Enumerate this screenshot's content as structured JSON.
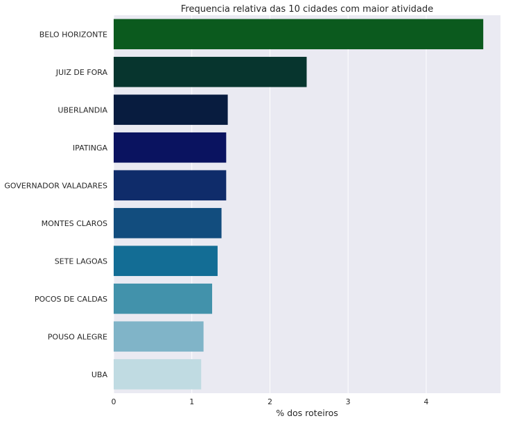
{
  "chart_data": {
    "type": "bar",
    "orientation": "horizontal",
    "title": "Frequencia relativa das 10 cidades com maior atividade",
    "xlabel": "% dos roteiros",
    "ylabel": "",
    "xlim": [
      0,
      4.95
    ],
    "xticks": [
      "0",
      "1",
      "2",
      "3",
      "4"
    ],
    "grid": true,
    "legend": "none",
    "plot_background": "#EAEAF2",
    "grid_color": "#ffffff",
    "categories": [
      "BELO HORIZONTE",
      "JUIZ DE FORA",
      "UBERLANDIA",
      "IPATINGA",
      "GOVERNADOR VALADARES",
      "MONTES CLAROS",
      "SETE LAGOAS",
      "POCOS DE CALDAS",
      "POUSO ALEGRE",
      "UBA"
    ],
    "values": [
      4.73,
      2.47,
      1.46,
      1.44,
      1.44,
      1.38,
      1.33,
      1.26,
      1.15,
      1.12
    ],
    "colors": [
      "#0b5a1e",
      "#07352e",
      "#081c3f",
      "#0a1360",
      "#0f2c6a",
      "#124d7e",
      "#136d95",
      "#4292ab",
      "#80b4c8",
      "#c0dbe2"
    ]
  }
}
